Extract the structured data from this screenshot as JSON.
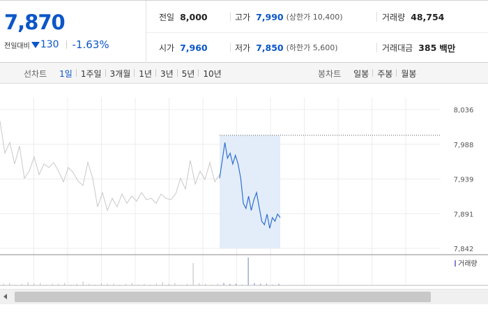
{
  "quote": {
    "price": "7,870",
    "change_label": "전일대비",
    "change_value": "130",
    "change_rate": "-1.63%",
    "prev_close": {
      "label": "전일",
      "value": "8,000"
    },
    "high": {
      "label": "고가",
      "value": "7,990",
      "limit_label": "(상한가 10,400)"
    },
    "volume": {
      "label": "거래량",
      "value": "48,754"
    },
    "open": {
      "label": "시가",
      "value": "7,960"
    },
    "low": {
      "label": "저가",
      "value": "7,850",
      "limit_label": "(하한가 5,600)"
    },
    "amount": {
      "label": "거래대금",
      "value": "385",
      "unit": "백만"
    }
  },
  "period_tabs": {
    "label": "선차트",
    "items": [
      "1일",
      "1주일",
      "3개월",
      "1년",
      "3년",
      "5년",
      "10년"
    ],
    "active": "1일"
  },
  "candle_tabs": {
    "label": "봉차트",
    "items": [
      "일봉",
      "주봉",
      "월봉"
    ]
  },
  "colors": {
    "accent": "#0b56c8",
    "prev_day_line": "#c8c8c8",
    "highlight": "#e3edf9"
  },
  "chart_data": {
    "type": "line",
    "y_ticks": [
      "8,036",
      "7,988",
      "7,939",
      "7,891",
      "7,842"
    ],
    "ylim": [
      7842,
      8036
    ],
    "ref_level": 8000,
    "volume_legend": "거래량",
    "prev_day_series": [
      8020,
      7975,
      7990,
      7960,
      7985,
      7940,
      7950,
      7970,
      7945,
      7960,
      7955,
      7962,
      7950,
      7935,
      7955,
      7948,
      7936,
      7930,
      7962,
      7940,
      7900,
      7920,
      7895,
      7912,
      7900,
      7918,
      7905,
      7915,
      7908,
      7920,
      7910,
      7912,
      7905,
      7918,
      7912,
      7910,
      7918,
      7940,
      7925,
      7965,
      7932,
      7950,
      7938,
      7962,
      7935,
      7945
    ],
    "today_series": [
      7940,
      7965,
      7990,
      7968,
      7975,
      7960,
      7972,
      7960,
      7940,
      7905,
      7898,
      7915,
      7895,
      7910,
      7920,
      7900,
      7880,
      7875,
      7890,
      7870,
      7885,
      7880,
      7890,
      7885
    ],
    "volume_bars": [
      2,
      3,
      1,
      2,
      4,
      2,
      3,
      1,
      2,
      2,
      3,
      1,
      2,
      5,
      2,
      1,
      3,
      2,
      2,
      1,
      2,
      3,
      1,
      2,
      1,
      2,
      4,
      2,
      3,
      1,
      2,
      28,
      3,
      2,
      1,
      2,
      3,
      2,
      2,
      1,
      35,
      3,
      2,
      2,
      1,
      2
    ]
  }
}
